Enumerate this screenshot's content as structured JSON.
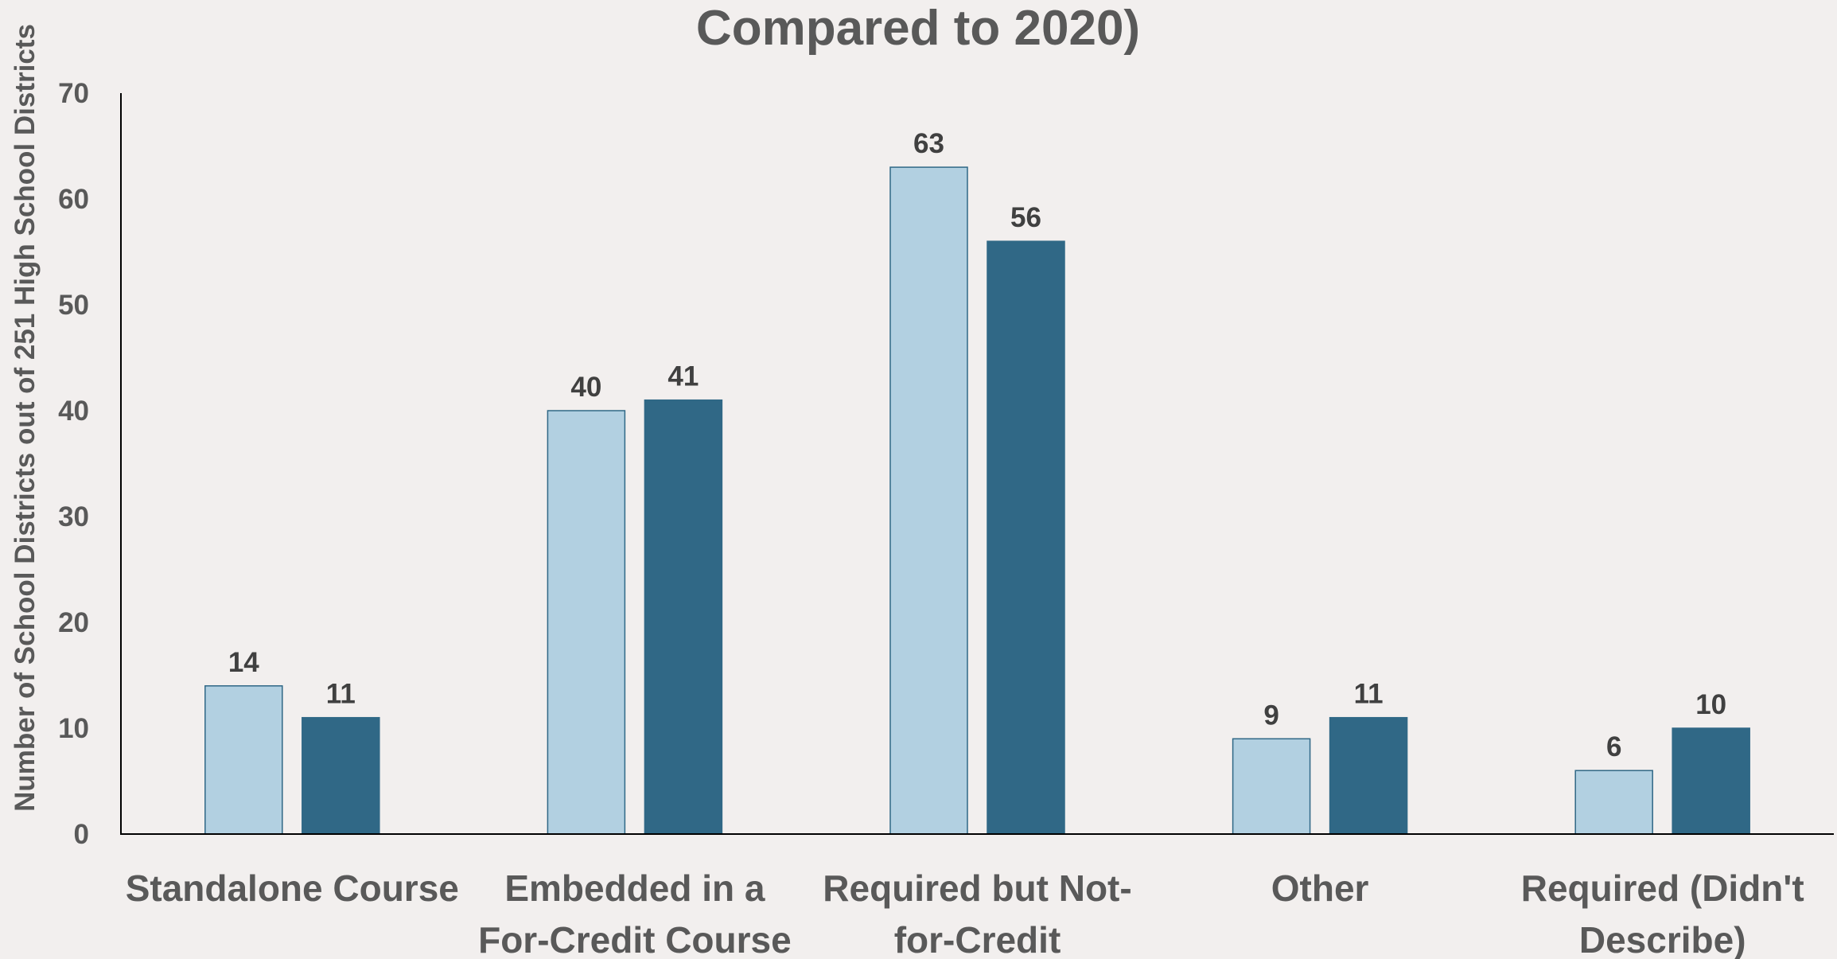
{
  "chart_data": {
    "type": "bar",
    "title": "Compared to 2020)",
    "xlabel": "",
    "ylabel": "Number of School Districts out of 251 High School Districts",
    "ylim": [
      0,
      70
    ],
    "yticks": [
      0,
      10,
      20,
      30,
      40,
      50,
      60,
      70
    ],
    "categories": [
      [
        "Standalone Course"
      ],
      [
        "Embedded in a",
        "For-Credit Course"
      ],
      [
        "Required but Not-",
        "for-Credit"
      ],
      [
        "Other"
      ],
      [
        "Required (Didn't",
        "Describe)"
      ]
    ],
    "series": [
      {
        "values": [
          14,
          40,
          63,
          9,
          6
        ],
        "color": "#b2d0e1"
      },
      {
        "values": [
          11,
          41,
          56,
          11,
          10
        ],
        "color": "#306886"
      }
    ],
    "grid": false,
    "legend": "none"
  }
}
